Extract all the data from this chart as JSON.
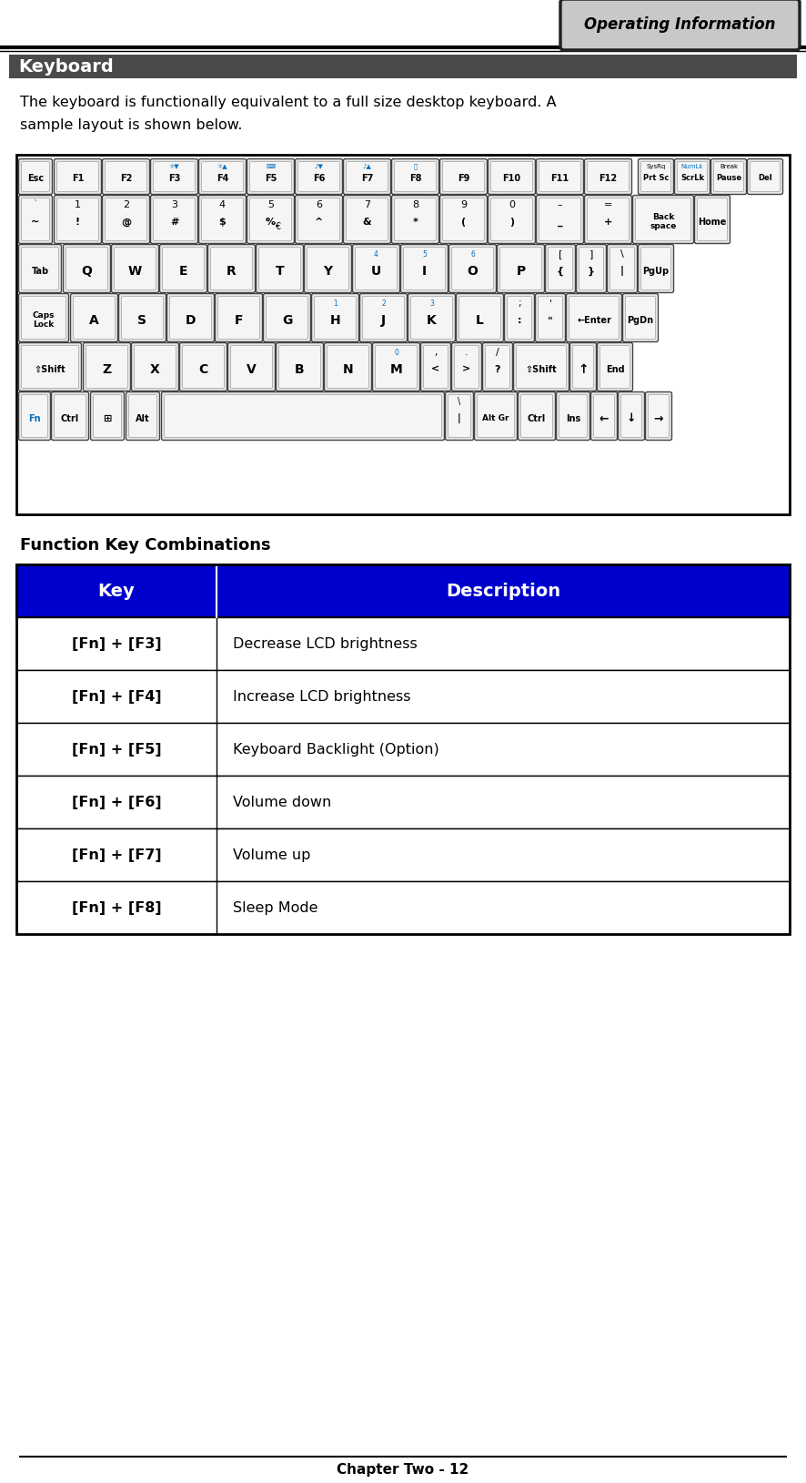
{
  "page_title": "Operating Information",
  "section_title": "Keyboard",
  "intro_line1": "The keyboard is functionally equivalent to a full size desktop keyboard. A",
  "intro_line2": "sample layout is shown below.",
  "table_title": "Function Key Combinations",
  "table_header": [
    "Key",
    "Description"
  ],
  "table_rows": [
    [
      "[Fn] + [F3]",
      "Decrease LCD brightness"
    ],
    [
      "[Fn] + [F4]",
      "Increase LCD brightness"
    ],
    [
      "[Fn] + [F5]",
      "Keyboard Backlight (Option)"
    ],
    [
      "[Fn] + [F6]",
      "Volume down"
    ],
    [
      "[Fn] + [F7]",
      "Volume up"
    ],
    [
      "[Fn] + [F8]",
      "Sleep Mode"
    ]
  ],
  "footer_text": "Chapter Two - 12",
  "header_box_color": "#c8c8c8",
  "header_box_border": "#222222",
  "section_bar_color": "#4a4a4a",
  "section_text_color": "#ffffff",
  "table_header_bg": "#0000cc",
  "table_header_fg": "#ffffff",
  "table_border_color": "#000000",
  "table_row_bg": "#ffffff",
  "page_bg": "#ffffff",
  "kb_border_color": "#000000",
  "key_outer_color": "#e8e8e8",
  "key_inner_color": "#f5f5f5",
  "key_border_color": "#555555"
}
